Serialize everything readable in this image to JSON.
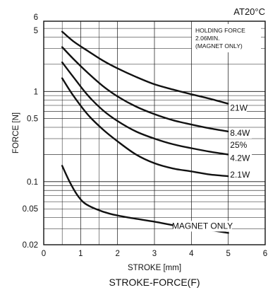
{
  "chart_data": {
    "type": "line",
    "title": "STROKE-FORCE(F)",
    "condition": "AT20°C",
    "xlabel": "STROKE [mm]",
    "ylabel": "FORCE [N]",
    "xlim": [
      0,
      6
    ],
    "ylim": [
      0.02,
      6
    ],
    "y_scale": "log",
    "x_ticks": [
      "0",
      "1",
      "2",
      "3",
      "4",
      "5",
      "6"
    ],
    "y_ticks": [
      {
        "label": "6",
        "value": 6
      },
      {
        "label": "5",
        "value": 5
      },
      {
        "label": "1",
        "value": 1
      },
      {
        "label": "0.5",
        "value": 0.5
      },
      {
        "label": "0.1",
        "value": 0.1
      },
      {
        "label": "0.05",
        "value": 0.05
      },
      {
        "label": "0.02",
        "value": 0.02
      }
    ],
    "grid": true,
    "annotation": [
      "HOLDING FORCE",
      "2.06MIN.",
      "(MAGNET ONLY)"
    ],
    "duty_label": "25%",
    "series": [
      {
        "name": "21W",
        "x": [
          0.5,
          0.8,
          1.2,
          1.6,
          2,
          2.5,
          3,
          3.5,
          4,
          4.5,
          5
        ],
        "y": [
          4.6,
          3.6,
          2.8,
          2.2,
          1.8,
          1.45,
          1.2,
          1.05,
          0.93,
          0.83,
          0.73
        ]
      },
      {
        "name": "8.4W",
        "x": [
          0.5,
          0.8,
          1.2,
          1.6,
          2,
          2.5,
          3,
          3.5,
          4,
          4.5,
          5
        ],
        "y": [
          3.1,
          2.3,
          1.6,
          1.15,
          0.88,
          0.68,
          0.56,
          0.48,
          0.43,
          0.39,
          0.36
        ]
      },
      {
        "name": "4.2W",
        "x": [
          0.5,
          0.8,
          1.2,
          1.6,
          2,
          2.5,
          3,
          3.5,
          4,
          4.5,
          5
        ],
        "y": [
          2.1,
          1.45,
          0.9,
          0.62,
          0.47,
          0.36,
          0.3,
          0.26,
          0.235,
          0.215,
          0.2
        ]
      },
      {
        "name": "2.1W",
        "x": [
          0.5,
          0.8,
          1.2,
          1.6,
          2,
          2.5,
          3,
          3.5,
          4,
          4.5,
          5
        ],
        "y": [
          1.4,
          0.9,
          0.55,
          0.38,
          0.28,
          0.2,
          0.16,
          0.14,
          0.13,
          0.12,
          0.115
        ]
      },
      {
        "name": "MAGNET ONLY",
        "x": [
          0.5,
          0.7,
          0.9,
          1.1,
          1.4,
          1.8,
          2.3,
          3,
          3.5,
          4,
          4.5,
          5
        ],
        "y": [
          0.15,
          0.1,
          0.072,
          0.058,
          0.05,
          0.044,
          0.04,
          0.036,
          0.033,
          0.031,
          0.029,
          0.027
        ]
      }
    ]
  }
}
